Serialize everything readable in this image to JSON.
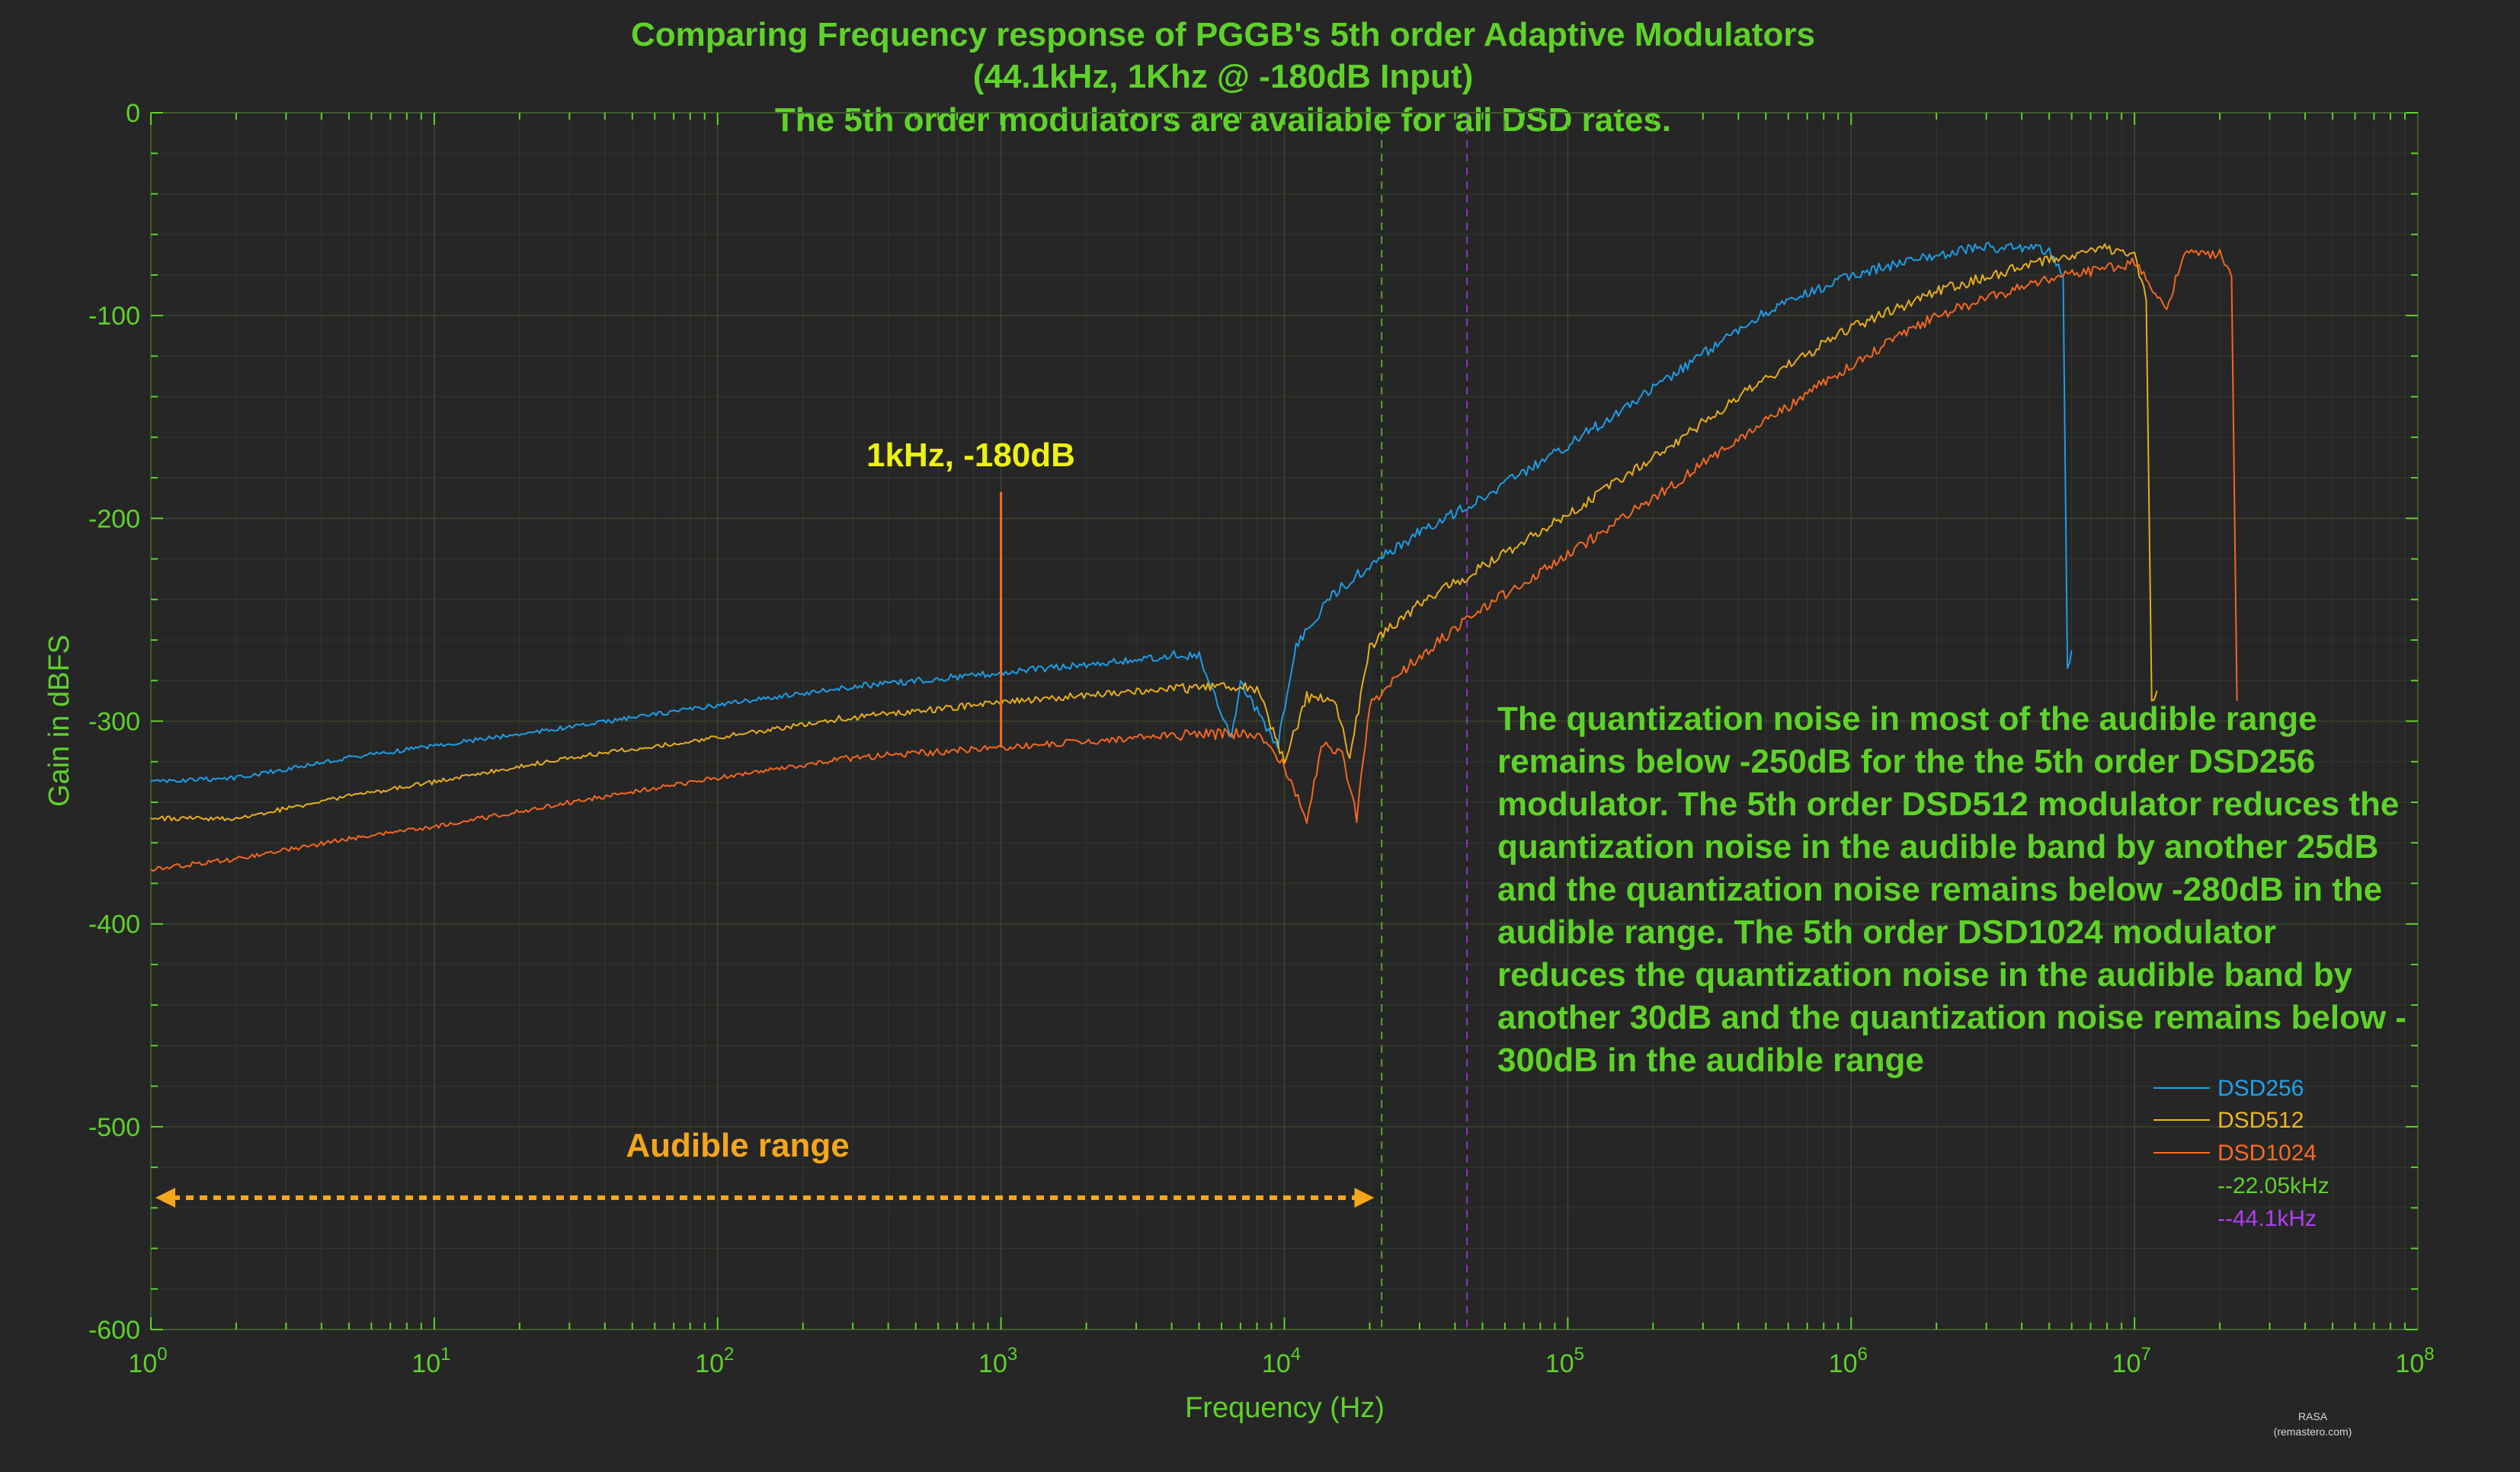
{
  "chart_data": {
    "type": "line",
    "title_lines": [
      "Comparing Frequency response of PGGB's 5th order Adaptive Modulators",
      "(44.1kHz, 1Khz @ -180dB Input)",
      "The 5th order modulators are available for all DSD rates."
    ],
    "xlabel": "Frequency (Hz)",
    "ylabel": "Gain in dBFS",
    "xscale": "log",
    "xlim": [
      1,
      100000000
    ],
    "ylim": [
      -600,
      0
    ],
    "x_tick_exponents": [
      "0",
      "1",
      "2",
      "3",
      "4",
      "5",
      "6",
      "7",
      "8"
    ],
    "x_tick_base": "10",
    "y_ticks": [
      0,
      -100,
      -200,
      -300,
      -400,
      -500,
      -600
    ],
    "y_tick_labels": [
      "0",
      "-100",
      "-200",
      "-300",
      "-400",
      "-500",
      "-600"
    ],
    "grid": true,
    "legend_position": "bottom-right",
    "colors": {
      "background": "#262626",
      "axes_text": "#5fd22a",
      "grid": "#3a4a30",
      "DSD256": "#1ea2f0",
      "DSD512": "#f0b51e",
      "DSD1024": "#ff6a1f",
      "marker_22k": "#5fd22a",
      "marker_44k": "#b23ef2",
      "annotation_1k": "#eef20f",
      "annotation_audible": "#f5a61b"
    },
    "series": [
      {
        "name": "DSD256",
        "x": [
          1,
          2,
          5,
          10,
          30,
          100,
          300,
          1000,
          2000,
          4000,
          5000,
          6500,
          7000,
          9500,
          11000,
          15000,
          20000,
          30000,
          50000,
          100000,
          200000,
          500000,
          1000000,
          2000000,
          3000000,
          5000000,
          5600000,
          5800000,
          6000000
        ],
        "y": [
          -330,
          -328,
          -318,
          -312,
          -303,
          -292,
          -283,
          -276,
          -272,
          -268,
          -268,
          -310,
          -282,
          -312,
          -262,
          -237,
          -223,
          -207,
          -190,
          -164,
          -136,
          -98,
          -80,
          -70,
          -66,
          -68,
          -80,
          -275,
          -265
        ]
      },
      {
        "name": "DSD512",
        "x": [
          1,
          2,
          5,
          10,
          30,
          100,
          300,
          1000,
          2000,
          4000,
          6000,
          8000,
          10000,
          12000,
          15000,
          17000,
          20000,
          30000,
          50000,
          100000,
          200000,
          500000,
          1000000,
          2000000,
          5000000,
          8000000,
          10000000,
          11000000,
          11500000,
          12000000
        ],
        "y": [
          -348,
          -348,
          -337,
          -330,
          -318,
          -308,
          -298,
          -291,
          -287,
          -284,
          -283,
          -284,
          -320,
          -288,
          -290,
          -318,
          -263,
          -242,
          -224,
          -198,
          -170,
          -131,
          -106,
          -88,
          -72,
          -67,
          -70,
          -92,
          -290,
          -285
        ]
      },
      {
        "name": "DSD1024",
        "x": [
          1,
          2,
          5,
          10,
          30,
          100,
          300,
          1000,
          2000,
          4000,
          8000,
          10000,
          12000,
          13500,
          16000,
          18000,
          20000,
          25000,
          30000,
          50000,
          100000,
          200000,
          500000,
          1000000,
          2000000,
          5000000,
          10000000,
          13000000,
          15000000,
          20000000,
          22000000,
          23000000
        ],
        "y": [
          -373,
          -368,
          -358,
          -352,
          -340,
          -328,
          -318,
          -313,
          -310,
          -307,
          -306,
          -322,
          -350,
          -312,
          -315,
          -348,
          -292,
          -278,
          -268,
          -244,
          -218,
          -190,
          -152,
          -124,
          -100,
          -82,
          -74,
          -96,
          -68,
          -70,
          -80,
          -290
        ]
      }
    ],
    "spike": {
      "series": "DSD1024",
      "x": 1000,
      "y_peak": -187,
      "y_base": -313,
      "label": "1kHz, -180dB"
    },
    "vertical_markers": [
      {
        "name": "--22.05kHz",
        "x": 22050
      },
      {
        "name": "--44.1kHz",
        "x": 44100
      }
    ],
    "annotations": {
      "audible_range_label": "Audible range",
      "audible_range_x": [
        1,
        20000
      ],
      "audible_range_y": -535,
      "paragraph_lines": [
        "The quantization noise in most of the audible range",
        "remains below -250dB for the the 5th order DSD256",
        "modulator. The 5th order DSD512 modulator reduces the",
        "quantization noise in the audible band by another 25dB",
        "and the quantization noise remains below -280dB in the",
        "audible range. The 5th order DSD1024 modulator",
        "reduces the quantization noise in the audible band by",
        "another 30dB and the quantization noise remains below -",
        "300dB in the audible range"
      ]
    },
    "legend_entries": [
      "DSD256",
      "DSD512",
      "DSD1024",
      "--22.05kHz",
      "--44.1kHz"
    ],
    "credit": [
      "RASA",
      "(remastero.com)"
    ]
  }
}
